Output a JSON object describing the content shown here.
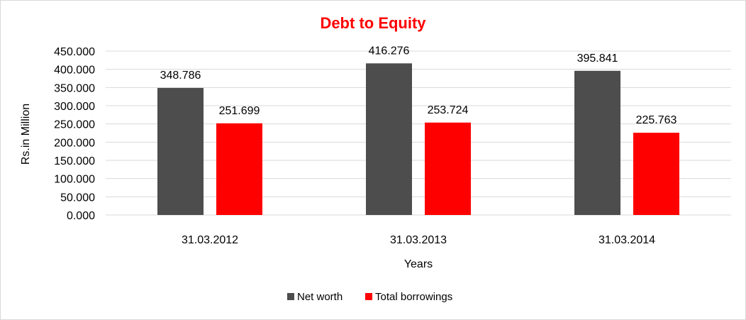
{
  "chart_data": {
    "type": "bar",
    "title": "Debt to Equity",
    "title_color": "#ff0000",
    "xlabel": "Years",
    "ylabel": "Rs.in Million",
    "categories": [
      "31.03.2012",
      "31.03.2013",
      "31.03.2014"
    ],
    "yticks": [
      "0.000",
      "50.000",
      "100.000",
      "150.000",
      "200.000",
      "250.000",
      "300.000",
      "350.000",
      "400.000",
      "450.000"
    ],
    "ylim": [
      0,
      450
    ],
    "grid": true,
    "legend_position": "bottom",
    "series": [
      {
        "name": "Net worth",
        "color": "#4d4d4d",
        "values": [
          348.786,
          416.276,
          395.841
        ],
        "labels": [
          "348.786",
          "416.276",
          "395.841"
        ]
      },
      {
        "name": "Total borrowings",
        "color": "#ff0000",
        "values": [
          251.699,
          253.724,
          225.763
        ],
        "labels": [
          "251.699",
          "253.724",
          "225.763"
        ]
      }
    ]
  }
}
